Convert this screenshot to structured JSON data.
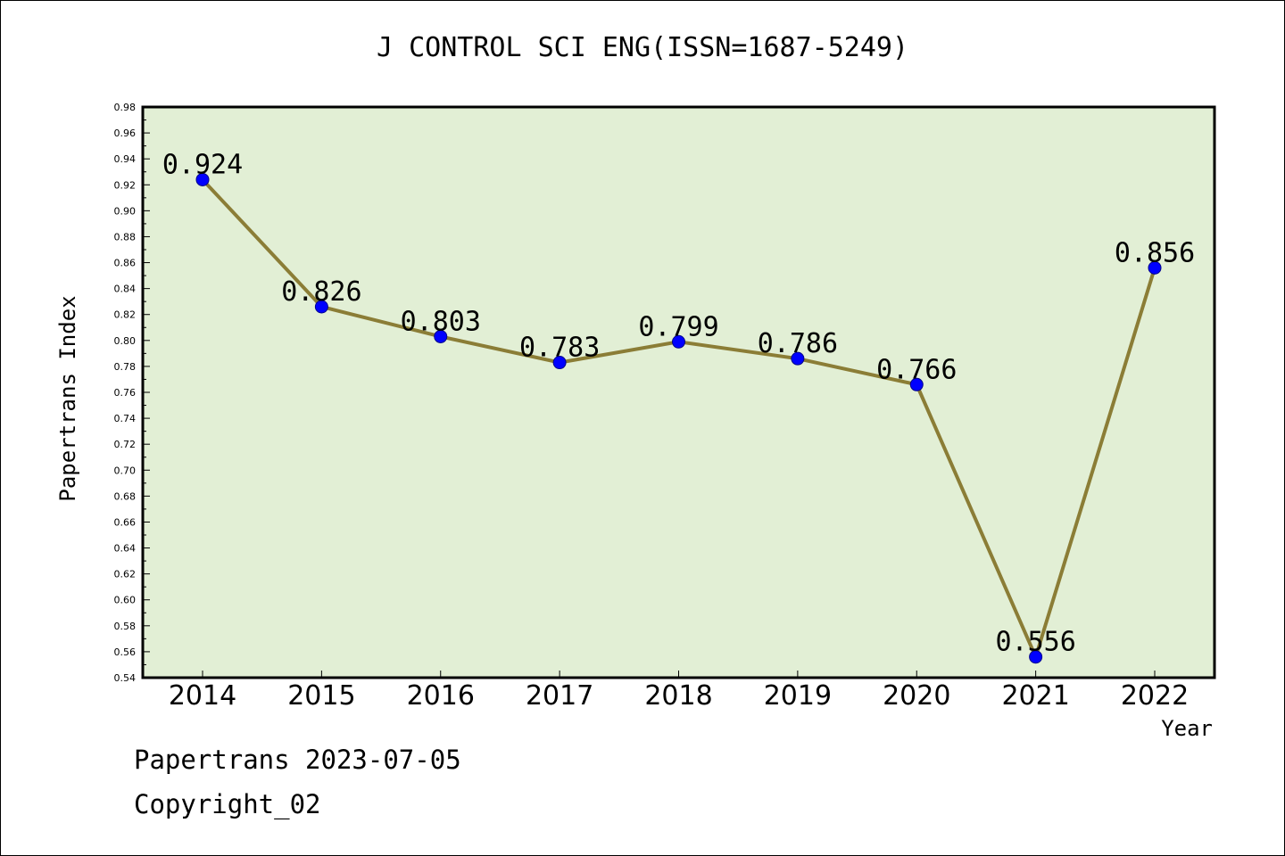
{
  "chart_data": {
    "type": "line",
    "title": "J CONTROL SCI ENG(ISSN=1687-5249)",
    "xlabel": "Year",
    "ylabel": "Papertrans Index",
    "categories": [
      "2014",
      "2015",
      "2016",
      "2017",
      "2018",
      "2019",
      "2020",
      "2021",
      "2022"
    ],
    "values": [
      0.924,
      0.826,
      0.803,
      0.783,
      0.799,
      0.786,
      0.766,
      0.556,
      0.856
    ],
    "data_labels": [
      "0.924",
      "0.826",
      "0.803",
      "0.783",
      "0.799",
      "0.786",
      "0.766",
      "0.556",
      "0.856"
    ],
    "ylim": [
      0.54,
      0.98
    ],
    "yticks": [
      "0.54",
      "0.56",
      "0.58",
      "0.60",
      "0.62",
      "0.64",
      "0.66",
      "0.68",
      "0.70",
      "0.72",
      "0.74",
      "0.76",
      "0.78",
      "0.80",
      "0.82",
      "0.84",
      "0.86",
      "0.88",
      "0.90",
      "0.92",
      "0.94",
      "0.96",
      "0.98"
    ],
    "grid": false,
    "colors": {
      "plot_background": "#e2efd5",
      "line": "#8b7d36",
      "marker": "#0000ff"
    }
  },
  "footer": {
    "line1": "Papertrans 2023-07-05",
    "line2": "Copyright_02"
  }
}
